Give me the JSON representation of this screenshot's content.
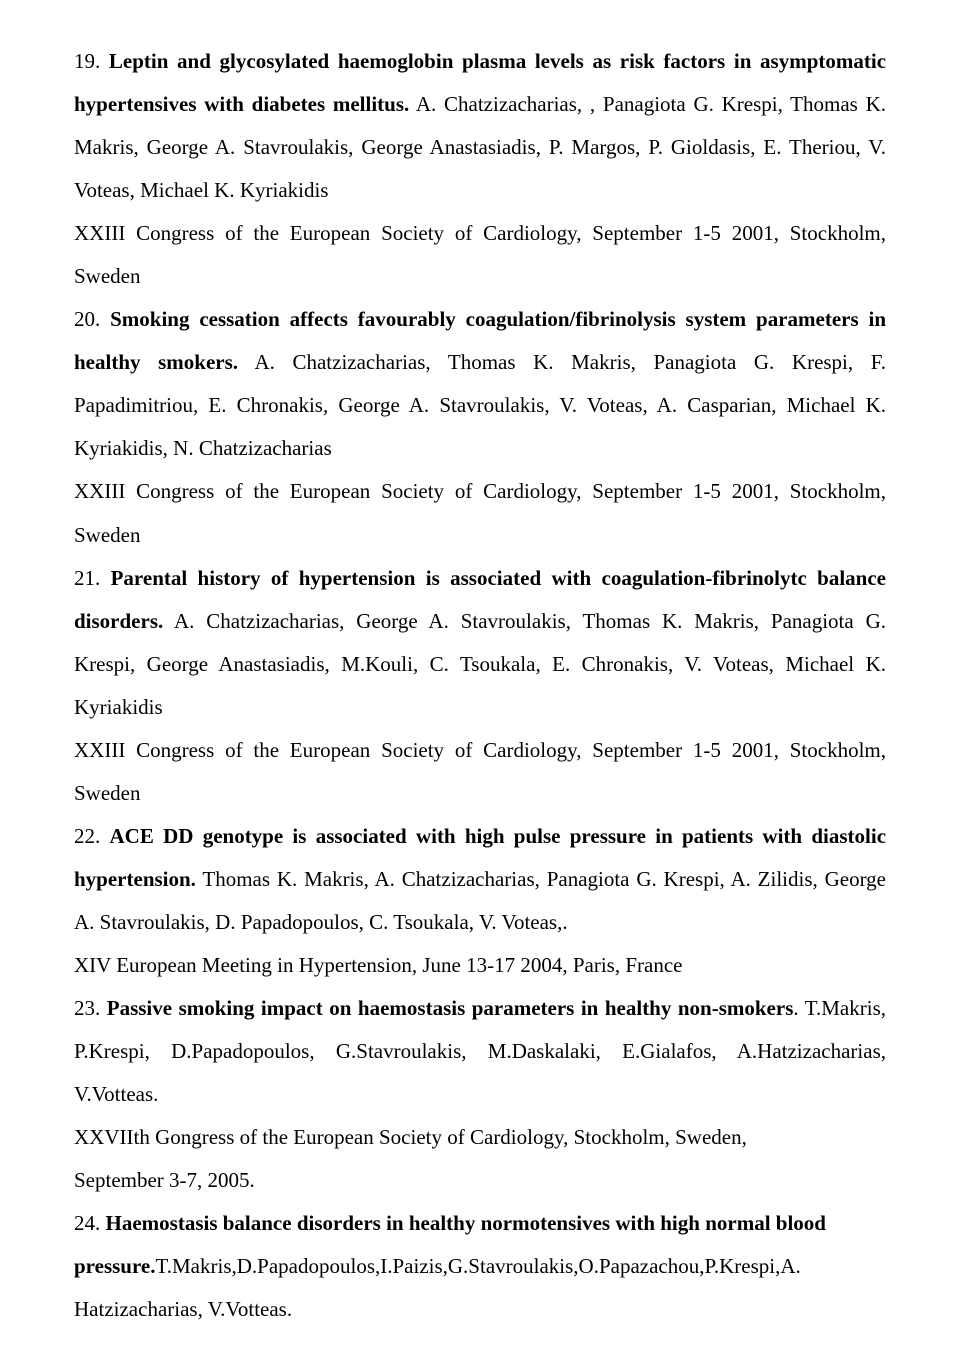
{
  "entries": [
    {
      "justify": true,
      "num": "19.",
      "title": "Leptin and glycosylated haemoglobin plasma levels as risk factors in asymptomatic hypertensives with diabetes mellitus.",
      "authors": " A. Chatzizacharias, , Panagiota G. Krespi, Thomas K. Makris, George A. Stavroulakis, George Anastasiadis, P. Margos, P. Gioldasis, E. Theriou, V. Voteas, Michael K. Kyriakidis",
      "venue": "XXIII Congress of the European Society of Cardiology, September 1-5 2001, Stockholm, Sweden"
    },
    {
      "justify": true,
      "num": "20.",
      "title": "Smoking cessation affects favourably coagulation/fibrinolysis system parameters in healthy smokers.",
      "authors": " A. Chatzizacharias, Thomas K. Makris, Panagiota G. Krespi, F. Papadimitriou, E. Chronakis, George A. Stavroulakis, V. Voteas, A. Casparian, Michael K. Kyriakidis, N. Chatzizacharias",
      "venue": "XXIII Congress of the European Society of Cardiology, September 1-5 2001, Stockholm, Sweden"
    },
    {
      "justify": true,
      "num": "21.",
      "title": "Parental history of hypertension is associated with coagulation-fibrinolytc balance disorders.",
      "authors": " A. Chatzizacharias, George A. Stavroulakis, Thomas K. Makris, Panagiota G. Krespi, George Anastasiadis, M.Kouli, C. Tsoukala, E. Chronakis, V. Voteas, Michael K. Kyriakidis",
      "venue": "XXIII Congress of the European Society of Cardiology, September 1-5 2001, Stockholm, Sweden"
    },
    {
      "justify": true,
      "num": "22.",
      "title": "ACE DD genotype is associated with high pulse pressure in patients with diastolic hypertension.",
      "authors": " Thomas K. Makris, A. Chatzizacharias, Panagiota G. Krespi, A. Zilidis, George A. Stavroulakis, D. Papadopoulos, C. Tsoukala, V. Voteas,.",
      "venue": "XIV European Meeting in Hypertension, June 13-17 2004, Paris, France"
    },
    {
      "justify": true,
      "num": "23.",
      "title": "Passive smoking impact on haemostasis parameters in healthy non-smokers",
      "authors": ". T.Makris, P.Krespi, D.Papadopoulos, G.Stavroulakis, M.Daskalaki, E.Gialafos, A.Hatzizacharias, V.Votteas.",
      "venue": "XXVIIth Gongress of the European Society of Cardiology, Stockholm, Sweden,",
      "venue2": "September 3-7, 2005."
    },
    {
      "justify": false,
      "num": "24.",
      "title": "Haemostasis balance disorders in healthy normotensives with high normal blood pressure.",
      "authors": "T.Makris,D.Papadopoulos,I.Paizis,G.Stavroulakis,O.Papazachou,P.Krespi,A. Hatzizacharias, V.Votteas.",
      "venue": ""
    }
  ]
}
